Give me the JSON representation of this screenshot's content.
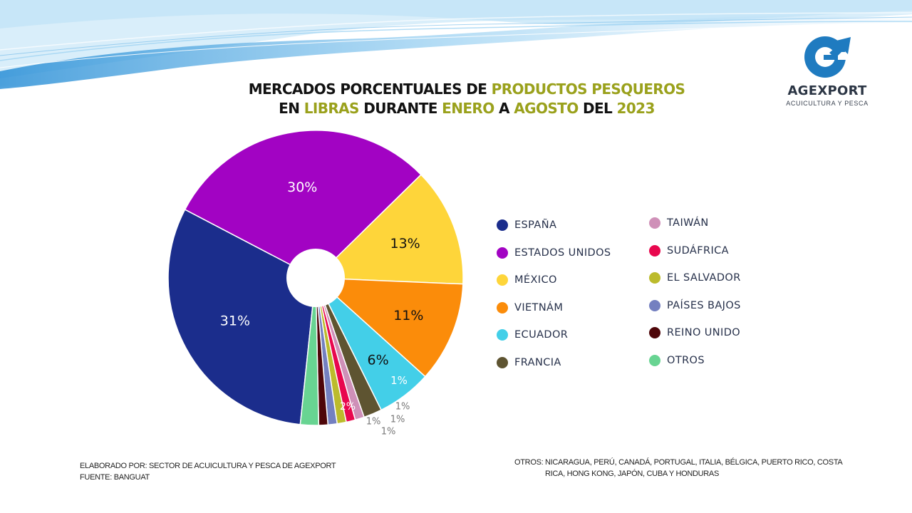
{
  "title": {
    "line1": [
      {
        "text": "MERCADOS PORCENTUALES DE ",
        "highlight": false
      },
      {
        "text": "PRODUCTOS PESQUEROS",
        "highlight": true
      }
    ],
    "line2": [
      {
        "text": "EN ",
        "highlight": false
      },
      {
        "text": "LIBRAS",
        "highlight": true
      },
      {
        "text": " DURANTE ",
        "highlight": false
      },
      {
        "text": "ENERO",
        "highlight": true
      },
      {
        "text": " A ",
        "highlight": false
      },
      {
        "text": "AGOSTO",
        "highlight": true
      },
      {
        "text": " DEL ",
        "highlight": false
      },
      {
        "text": "2023",
        "highlight": true
      }
    ],
    "highlight_color": "#9aa11c"
  },
  "logo": {
    "name": "AGEXPORT",
    "subtitle": "ACUICULTURA Y PESCA",
    "icon": "agexport-g-arrow-logo",
    "color": "#1f7bc0"
  },
  "chart_data": {
    "type": "pie",
    "donut_hole": true,
    "title": "MERCADOS PORCENTUALES DE PRODUCTOS PESQUEROS EN LIBRAS DURANTE ENERO A AGOSTO DEL 2023",
    "legend_position": "right",
    "slices": [
      {
        "label": "ESPAÑA",
        "value": 31,
        "display": "31%",
        "color": "#1b2d8c"
      },
      {
        "label": "ESTADOS UNIDOS",
        "value": 30,
        "display": "30%",
        "color": "#a203c3"
      },
      {
        "label": "MÉXICO",
        "value": 13,
        "display": "13%",
        "color": "#fed53a"
      },
      {
        "label": "VIETNÁM",
        "value": 11,
        "display": "11%",
        "color": "#fb8c0a"
      },
      {
        "label": "ECUADOR",
        "value": 6,
        "display": "6%",
        "color": "#43cfe8"
      },
      {
        "label": "FRANCIA",
        "value": 2,
        "display": "2%",
        "color": "#5e5431"
      },
      {
        "label": "TAIWÁN",
        "value": 1,
        "display": "1%",
        "color": "#cf90b8"
      },
      {
        "label": "SUDÁFRICA",
        "value": 1,
        "display": "1%",
        "color": "#e8074e"
      },
      {
        "label": "EL SALVADOR",
        "value": 1,
        "display": "1%",
        "color": "#bcbb2c"
      },
      {
        "label": "PAÍSES BAJOS",
        "value": 1,
        "display": "1%",
        "color": "#7480c0"
      },
      {
        "label": "REINO UNIDO",
        "value": 1,
        "display": "1%",
        "color": "#4e0609"
      },
      {
        "label": "OTROS",
        "value": 2,
        "display": "2%",
        "color": "#68d492"
      }
    ]
  },
  "legend": {
    "column1": [
      "ESPAÑA",
      "ESTADOS UNIDOS",
      "MÉXICO",
      "VIETNÁM",
      "ECUADOR",
      "FRANCIA"
    ],
    "column2": [
      "TAIWÁN",
      "SUDÁFRICA",
      "EL SALVADOR",
      "PAÍSES BAJOS",
      "REINO UNIDO",
      "OTROS"
    ]
  },
  "footer": {
    "elaborado": "ELABORADO POR: SECTOR DE ACUICULTURA Y PESCA DE AGEXPORT",
    "fuente": "FUENTE:  BANGUAT",
    "otros_label": "OTROS:",
    "otros_text": "NICARAGUA, PERÚ, CANADÁ, PORTUGAL, ITALIA, BÉLGICA, PUERTO RICO, COSTA RICA, HONG KONG, JAPÓN, CUBA Y HONDURAS"
  }
}
